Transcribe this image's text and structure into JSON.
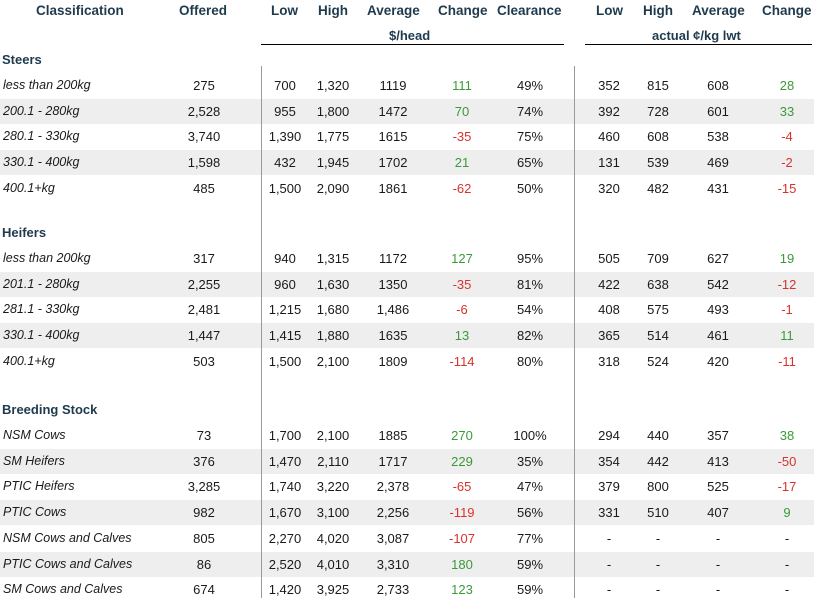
{
  "headers": {
    "classification": "Classification",
    "offered": "Offered",
    "low": "Low",
    "high": "High",
    "average": "Average",
    "change": "Change",
    "clearance": "Clearance",
    "low2": "Low",
    "high2": "High",
    "average2": "Average",
    "change2": "Change",
    "head_unit": "$/head",
    "lwt_unit": "actual ¢/kg lwt"
  },
  "sections": [
    {
      "title": "Steers",
      "rows": [
        {
          "label": "less than 200kg",
          "offered": "275",
          "low": "700",
          "high": "1,320",
          "avg": "1119",
          "change": "111",
          "clearance": "49%",
          "low2": "352",
          "high2": "815",
          "avg2": "608",
          "change2": "28"
        },
        {
          "label": "200.1 - 280kg",
          "offered": "2,528",
          "low": "955",
          "high": "1,800",
          "avg": "1472",
          "change": "70",
          "clearance": "74%",
          "low2": "392",
          "high2": "728",
          "avg2": "601",
          "change2": "33"
        },
        {
          "label": "280.1 - 330kg",
          "offered": "3,740",
          "low": "1,390",
          "high": "1,775",
          "avg": "1615",
          "change": "-35",
          "clearance": "75%",
          "low2": "460",
          "high2": "608",
          "avg2": "538",
          "change2": "-4"
        },
        {
          "label": "330.1 - 400kg",
          "offered": "1,598",
          "low": "432",
          "high": "1,945",
          "avg": "1702",
          "change": "21",
          "clearance": "65%",
          "low2": "131",
          "high2": "539",
          "avg2": "469",
          "change2": "-2"
        },
        {
          "label": "400.1+kg",
          "offered": "485",
          "low": "1,500",
          "high": "2,090",
          "avg": "1861",
          "change": "-62",
          "clearance": "50%",
          "low2": "320",
          "high2": "482",
          "avg2": "431",
          "change2": "-15"
        }
      ]
    },
    {
      "title": "Heifers",
      "rows": [
        {
          "label": "less than 200kg",
          "offered": "317",
          "low": "940",
          "high": "1,315",
          "avg": "1172",
          "change": "127",
          "clearance": "95%",
          "low2": "505",
          "high2": "709",
          "avg2": "627",
          "change2": "19"
        },
        {
          "label": "201.1 - 280kg",
          "offered": "2,255",
          "low": "960",
          "high": "1,630",
          "avg": "1350",
          "change": "-35",
          "clearance": "81%",
          "low2": "422",
          "high2": "638",
          "avg2": "542",
          "change2": "-12"
        },
        {
          "label": "281.1 - 330kg",
          "offered": "2,481",
          "low": "1,215",
          "high": "1,680",
          "avg": "1,486",
          "change": "-6",
          "clearance": "54%",
          "low2": "408",
          "high2": "575",
          "avg2": "493",
          "change2": "-1"
        },
        {
          "label": "330.1 - 400kg",
          "offered": "1,447",
          "low": "1,415",
          "high": "1,880",
          "avg": "1635",
          "change": "13",
          "clearance": "82%",
          "low2": "365",
          "high2": "514",
          "avg2": "461",
          "change2": "11"
        },
        {
          "label": "400.1+kg",
          "offered": "503",
          "low": "1,500",
          "high": "2,100",
          "avg": "1809",
          "change": "-114",
          "clearance": "80%",
          "low2": "318",
          "high2": "524",
          "avg2": "420",
          "change2": "-11"
        }
      ]
    },
    {
      "title": "Breeding Stock",
      "rows": [
        {
          "label": "NSM Cows",
          "offered": "73",
          "low": "1,700",
          "high": "2,100",
          "avg": "1885",
          "change": "270",
          "clearance": "100%",
          "low2": "294",
          "high2": "440",
          "avg2": "357",
          "change2": "38"
        },
        {
          "label": "SM Heifers",
          "offered": "376",
          "low": "1,470",
          "high": "2,110",
          "avg": "1717",
          "change": "229",
          "clearance": "35%",
          "low2": "354",
          "high2": "442",
          "avg2": "413",
          "change2": "-50"
        },
        {
          "label": "PTIC Heifers",
          "offered": "3,285",
          "low": "1,740",
          "high": "3,220",
          "avg": "2,378",
          "change": "-65",
          "clearance": "47%",
          "low2": "379",
          "high2": "800",
          "avg2": "525",
          "change2": "-17"
        },
        {
          "label": "PTIC Cows",
          "offered": "982",
          "low": "1,670",
          "high": "3,100",
          "avg": "2,256",
          "change": "-119",
          "clearance": "56%",
          "low2": "331",
          "high2": "510",
          "avg2": "407",
          "change2": "9"
        },
        {
          "label": "NSM Cows and Calves",
          "offered": "805",
          "low": "2,270",
          "high": "4,020",
          "avg": "3,087",
          "change": "-107",
          "clearance": "77%",
          "low2": "-",
          "high2": "-",
          "avg2": "-",
          "change2": "-"
        },
        {
          "label": "PTIC Cows and Calves",
          "offered": "86",
          "low": "2,520",
          "high": "4,010",
          "avg": "3,310",
          "change": "180",
          "clearance": "59%",
          "low2": "-",
          "high2": "-",
          "avg2": "-",
          "change2": "-"
        },
        {
          "label": "SM Cows and Calves",
          "offered": "674",
          "low": "1,420",
          "high": "3,925",
          "avg": "2,733",
          "change": "123",
          "clearance": "59%",
          "low2": "-",
          "high2": "-",
          "avg2": "-",
          "change2": "-"
        }
      ]
    }
  ],
  "colors": {
    "positive": "#3a9a3a",
    "negative": "#d8322e",
    "header": "#1f3a4d",
    "shade": "#eeeeee"
  }
}
